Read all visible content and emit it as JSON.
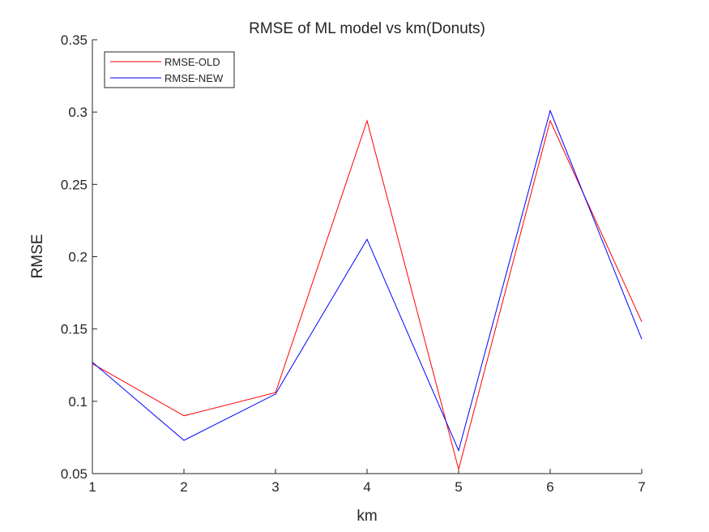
{
  "chart_data": {
    "type": "line",
    "title": "RMSE of ML model vs km(Donuts)",
    "xlabel": "km",
    "ylabel": "RMSE",
    "x": [
      1,
      2,
      3,
      4,
      5,
      6,
      7
    ],
    "xlim": [
      1,
      7
    ],
    "ylim": [
      0.05,
      0.35
    ],
    "xticks": [
      "1",
      "2",
      "3",
      "4",
      "5",
      "6",
      "7"
    ],
    "yticks": [
      "0.05",
      "0.1",
      "0.15",
      "0.2",
      "0.25",
      "0.3",
      "0.35"
    ],
    "grid": false,
    "legend_position": "top-left",
    "series": [
      {
        "name": "RMSE-OLD",
        "color": "#ff0000",
        "values": [
          0.126,
          0.09,
          0.106,
          0.294,
          0.053,
          0.294,
          0.155
        ]
      },
      {
        "name": "RMSE-NEW",
        "color": "#0000ff",
        "values": [
          0.127,
          0.073,
          0.105,
          0.212,
          0.066,
          0.301,
          0.143
        ]
      }
    ]
  }
}
